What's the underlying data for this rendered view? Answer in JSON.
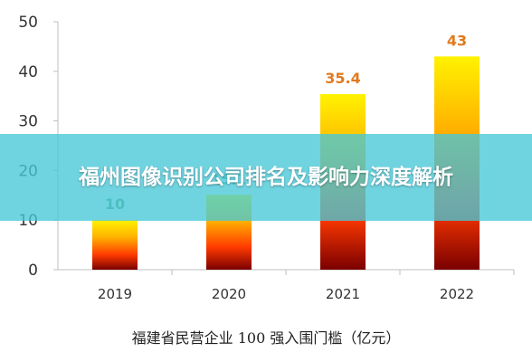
{
  "chart_data": {
    "type": "bar",
    "categories": [
      "2019",
      "2020",
      "2021",
      "2022"
    ],
    "values": [
      10,
      15.1,
      35.4,
      43
    ],
    "value_labels": [
      "10",
      "15.1",
      "35.4",
      "43"
    ],
    "y_ticks": [
      "0",
      "10",
      "20",
      "30",
      "40",
      "50"
    ],
    "ylim": [
      0,
      50
    ],
    "xlabel": "福建省民营企业 100 强入围门槛（亿元）",
    "colors": {
      "gradient_top": "#ffe600",
      "gradient_mid": "#ff3a00",
      "gradient_bottom": "#7a0000",
      "label_early": "#5aa06e",
      "label_late": "#e07a1e"
    }
  },
  "overlay": {
    "title": "福州图像识别公司排名及影响力深度解析"
  }
}
